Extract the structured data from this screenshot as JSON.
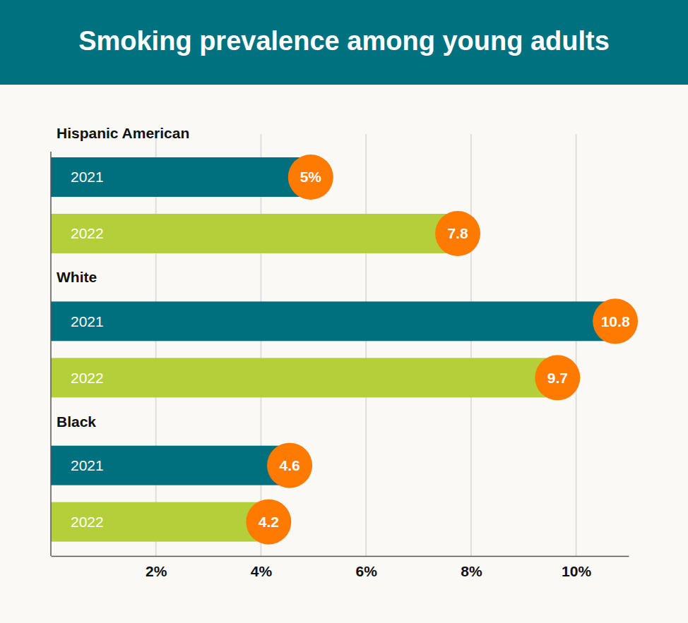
{
  "chart_data": {
    "type": "bar",
    "orientation": "horizontal",
    "title": "Smoking prevalence among young adults",
    "categories": [
      "Hispanic American",
      "White",
      "Black"
    ],
    "series": [
      {
        "name": "2021",
        "color": "#00707f",
        "values": [
          5,
          10.8,
          4.6
        ],
        "value_labels": [
          "5%",
          "10.8",
          "4.6"
        ]
      },
      {
        "name": "2022",
        "color": "#b5cf3a",
        "values": [
          7.8,
          9.7,
          4.2
        ],
        "value_labels": [
          "7.8",
          "9.7",
          "4.2"
        ]
      }
    ],
    "xlim": [
      0,
      11
    ],
    "xticks": [
      {
        "value": 2,
        "label": "2%"
      },
      {
        "value": 4,
        "label": "4%"
      },
      {
        "value": 6,
        "label": "6%"
      },
      {
        "value": 8,
        "label": "8%"
      },
      {
        "value": 10,
        "label": "10%"
      }
    ],
    "grid": true,
    "data_labels": true
  }
}
